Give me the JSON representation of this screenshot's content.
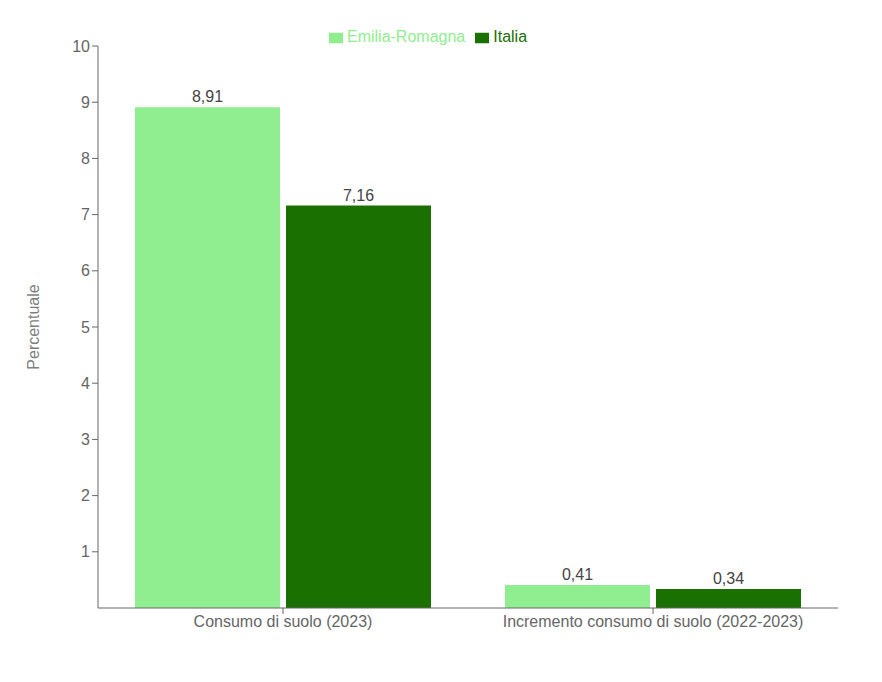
{
  "chart_data": {
    "type": "bar",
    "categories": [
      "Consumo di suolo (2023)",
      "Incremento consumo di suolo (2022-2023)"
    ],
    "series": [
      {
        "name": "Emilia-Romagna",
        "color": "#90EE90",
        "values": [
          8.91,
          0.41
        ],
        "value_labels": [
          "8,91",
          "0,41"
        ]
      },
      {
        "name": "Italia",
        "color": "#1a7000",
        "values": [
          7.16,
          0.34
        ],
        "value_labels": [
          "7,16",
          "0,34"
        ]
      }
    ],
    "ylabel": "Percentuale",
    "ylim": [
      0,
      10
    ],
    "yticks": [
      1,
      2,
      3,
      4,
      5,
      6,
      7,
      8,
      9,
      10
    ],
    "grid": false,
    "legend": "top",
    "data_labels": true
  }
}
